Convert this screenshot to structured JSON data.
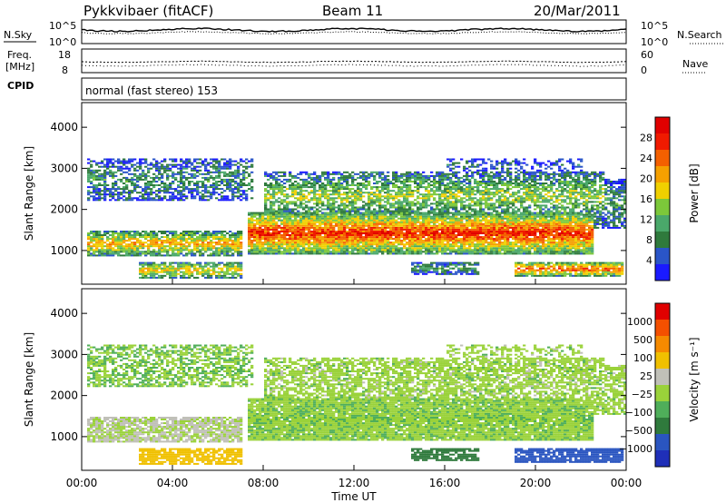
{
  "header": {
    "site": "Pykkvibaer (fitACF)",
    "beam": "Beam 11",
    "date": "20/Mar/2011"
  },
  "sky_panel": {
    "left_label": "N.Sky",
    "left_ticks": [
      "10^5",
      "10^0"
    ],
    "right_label": "N.Search",
    "right_ticks": [
      "10^5",
      "10^0"
    ]
  },
  "freq_panel": {
    "left_label_1": "Freq.",
    "left_label_2": "[MHz]",
    "left_ticks": [
      "18",
      "8"
    ],
    "right_label": "Nave",
    "right_ticks": [
      "60",
      "0"
    ]
  },
  "cpid": {
    "label": "CPID",
    "mode": "normal (fast stereo) 153"
  },
  "colors": {
    "power": [
      "#1a1aff",
      "#2a55c8",
      "#2f7a3c",
      "#4aa86a",
      "#7cc83a",
      "#f0d000",
      "#f5a000",
      "#f46000",
      "#f01a00",
      "#e00000"
    ],
    "velocity": [
      "#1f2fb8",
      "#2a55c0",
      "#2f7a3c",
      "#4fae5a",
      "#9ad23a",
      "#c0c0b8",
      "#f0c000",
      "#f58a00",
      "#f45000",
      "#e00000"
    ]
  },
  "chart_data": [
    {
      "type": "heatmap",
      "name": "power-panel",
      "xlabel": "",
      "ylabel": "Slant Range [km]",
      "yticks": [
        1000,
        2000,
        3000,
        4000
      ],
      "ylim": [
        180,
        4600
      ],
      "xticks": [
        "00:00",
        "04:00",
        "08:00",
        "12:00",
        "16:00",
        "20:00",
        "00:00"
      ],
      "xlim_hours": [
        0,
        24
      ],
      "colorbar": {
        "label": "Power [dB]",
        "ticks": [
          "4",
          "8",
          "12",
          "16",
          "20",
          "24",
          "28"
        ],
        "range": [
          0,
          30
        ]
      }
    },
    {
      "type": "heatmap",
      "name": "velocity-panel",
      "xlabel": "Time UT",
      "ylabel": "Slant Range [km]",
      "yticks": [
        1000,
        2000,
        3000,
        4000
      ],
      "ylim": [
        180,
        4600
      ],
      "xticks": [
        "00:00",
        "04:00",
        "08:00",
        "12:00",
        "16:00",
        "20:00",
        "00:00"
      ],
      "xlim_hours": [
        0,
        24
      ],
      "colorbar": {
        "label": "Velocity [m s⁻¹]",
        "ticks": [
          "1000",
          "500",
          "100",
          "25",
          "−25",
          "−100",
          "−500",
          "−1000"
        ]
      }
    }
  ]
}
